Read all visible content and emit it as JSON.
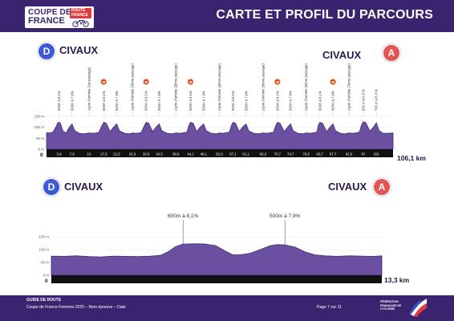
{
  "header": {
    "logo_line1": "COUPE DE",
    "logo_line2": "FRANCE",
    "logo_badge": "ROUTE FRANCE",
    "title": "CARTE ET PROFIL DU PARCOURS"
  },
  "colors": {
    "brand": "#3a2470",
    "profile_fill": "#6b4fa0",
    "profile_dark": "#3e2a75",
    "start_circle": "#3d5ad6",
    "finish_circle": "#e25550",
    "climb_marker": "#e0521f"
  },
  "profile1": {
    "start_letter": "D",
    "finish_letter": "A",
    "start_name": "CIVAUX",
    "finish_name": "CIVAUX",
    "total_km": "106,1 km",
    "zero_label": "0"
  },
  "profile2": {
    "start_letter": "D",
    "finish_letter": "A",
    "start_name": "CIVAUX",
    "finish_name": "CIVAUX",
    "total_km": "13,3 km",
    "zero_label": "0"
  },
  "footer": {
    "guide": "GUIDE DE ROUTE",
    "event": "Coupe de France Femmes 2025 – Nom épreuve – Date",
    "page": "Page 7 sur 11",
    "federation": "FÉDÉRATION FRANÇAISE DE CYCLISME"
  },
  "chart_data": [
    {
      "type": "area",
      "title": "",
      "x_unit": "km",
      "y_unit": "m",
      "ylim": [
        0,
        160
      ],
      "y_ticks": [
        "150 m",
        "100 m",
        "50 m",
        "0 m"
      ],
      "x_ticks": [
        "3,8",
        "7,8",
        "13",
        "17,5",
        "21,5",
        "26,3",
        "30,5",
        "34,5",
        "39,6",
        "44,1",
        "48,1",
        "52,9",
        "57,1",
        "61,1",
        "66,3",
        "70,7",
        "74,7",
        "79,5",
        "83,7",
        "87,7",
        "92,6",
        "97",
        "101"
      ],
      "x_tick_values": [
        3.8,
        7.8,
        13,
        17.5,
        21.5,
        26.3,
        30.5,
        34.5,
        39.6,
        44.1,
        48.1,
        52.9,
        57.1,
        61.1,
        66.3,
        70.7,
        74.7,
        79.5,
        83.7,
        87.7,
        92.6,
        97,
        101
      ],
      "x_range": [
        0,
        106.1
      ],
      "annotations": [
        {
          "km": 3.8,
          "text": "600m à 8,1%"
        },
        {
          "km": 7.8,
          "text": "500m à 7,9%"
        },
        {
          "km": 13,
          "text": "Ligne d'arrivée (1er passage)"
        },
        {
          "km": 17.5,
          "text": "600m à 8,1%"
        },
        {
          "km": 21.5,
          "text": "500m à 7,9%"
        },
        {
          "km": 26.3,
          "text": "Ligne d'arrivée (2ème passage)"
        },
        {
          "km": 30.5,
          "text": "600m à 8,1%"
        },
        {
          "km": 34.5,
          "text": "500m à 7,9%"
        },
        {
          "km": 39.6,
          "text": "Ligne d'arrivée (3ème passage)"
        },
        {
          "km": 44.1,
          "text": "600m à 8,1%"
        },
        {
          "km": 48.1,
          "text": "500m à 7,9%"
        },
        {
          "km": 52.9,
          "text": "Ligne d'arrivée (4ème passage)"
        },
        {
          "km": 57.1,
          "text": "600m à 8,1%"
        },
        {
          "km": 61.1,
          "text": "500m à 7,9%"
        },
        {
          "km": 66.3,
          "text": "Ligne d'arrivée (5ème passage)"
        },
        {
          "km": 70.7,
          "text": "600m à 8,1%"
        },
        {
          "km": 74.7,
          "text": "500m à 7,9%"
        },
        {
          "km": 79.5,
          "text": "Ligne d'arrivée (6ème passage)"
        },
        {
          "km": 83.7,
          "text": "600m à 8,1%"
        },
        {
          "km": 87.7,
          "text": "500m à 7,9%"
        },
        {
          "km": 92.6,
          "text": "Ligne d'arrivée (7ème passage)"
        },
        {
          "km": 97,
          "text": "600 m à 6,5 %"
        },
        {
          "km": 101,
          "text": "700 m à 6,3 %"
        }
      ],
      "climb_markers_km": [
        17.5,
        30.5,
        44.1,
        70.7,
        87.7
      ],
      "elevation_km": [
        0,
        1,
        2,
        3,
        3.5,
        4.2,
        5,
        6,
        7,
        7.8,
        8.6,
        10,
        11.5,
        13,
        14.5,
        16,
        17,
        17.5,
        18.3,
        19.5,
        20.5,
        21.5,
        22.3,
        24,
        25.5,
        26.3,
        27.5,
        29,
        30,
        30.5,
        31.3,
        32.5,
        33.5,
        34.5,
        35.3,
        37,
        38.5,
        39.6,
        41,
        43,
        43.6,
        44.1,
        44.9,
        46,
        47,
        48.1,
        48.9,
        50.5,
        52,
        52.9,
        54,
        56,
        56.6,
        57.1,
        57.9,
        59,
        60,
        61.1,
        61.9,
        63.5,
        65,
        66.3,
        67.5,
        69.5,
        70.2,
        70.7,
        71.5,
        72.8,
        73.8,
        74.7,
        75.5,
        77,
        78.5,
        79.5,
        80.8,
        82.8,
        83.2,
        83.7,
        84.5,
        85.8,
        86.8,
        87.7,
        88.5,
        90,
        91.5,
        92.6,
        94,
        95.8,
        96.4,
        97,
        97.8,
        99,
        100.2,
        101,
        101.8,
        103,
        104.5,
        106.1
      ],
      "elevation_m": [
        75,
        74,
        78,
        105,
        122,
        120,
        82,
        74,
        100,
        115,
        85,
        72,
        70,
        74,
        72,
        76,
        108,
        122,
        118,
        80,
        100,
        115,
        84,
        72,
        70,
        74,
        72,
        76,
        108,
        122,
        118,
        80,
        100,
        115,
        84,
        72,
        70,
        74,
        72,
        78,
        108,
        122,
        118,
        80,
        100,
        115,
        84,
        72,
        70,
        74,
        72,
        78,
        108,
        122,
        118,
        80,
        100,
        115,
        84,
        72,
        70,
        74,
        72,
        78,
        108,
        122,
        118,
        80,
        100,
        115,
        84,
        72,
        70,
        74,
        72,
        78,
        108,
        122,
        118,
        80,
        100,
        115,
        84,
        72,
        70,
        74,
        72,
        78,
        108,
        125,
        120,
        82,
        102,
        120,
        85,
        73,
        72,
        74
      ]
    },
    {
      "type": "area",
      "title": "",
      "x_unit": "km",
      "y_unit": "m",
      "ylim": [
        0,
        160
      ],
      "y_ticks": [
        "150 m",
        "100 m",
        "50 m",
        "0 m"
      ],
      "x_range": [
        0,
        13.3
      ],
      "annotations": [
        {
          "km": 5.3,
          "text": "600m à 8,1%"
        },
        {
          "km": 9.4,
          "text": "500m à 7,9%"
        }
      ],
      "elevation_km": [
        0,
        0.5,
        1,
        1.5,
        2,
        2.5,
        3,
        3.5,
        4,
        4.4,
        4.7,
        5,
        5.3,
        5.8,
        6.2,
        6.6,
        7,
        7.3,
        7.6,
        8,
        8.4,
        8.8,
        9.1,
        9.4,
        9.8,
        10.2,
        10.6,
        11,
        11.5,
        12,
        12.5,
        13,
        13.3
      ],
      "elevation_m": [
        75,
        74,
        76,
        73,
        72,
        75,
        74,
        73,
        75,
        78,
        92,
        112,
        122,
        123,
        122,
        116,
        95,
        80,
        80,
        86,
        100,
        115,
        120,
        119,
        110,
        92,
        80,
        76,
        74,
        76,
        75,
        74,
        76
      ]
    }
  ]
}
